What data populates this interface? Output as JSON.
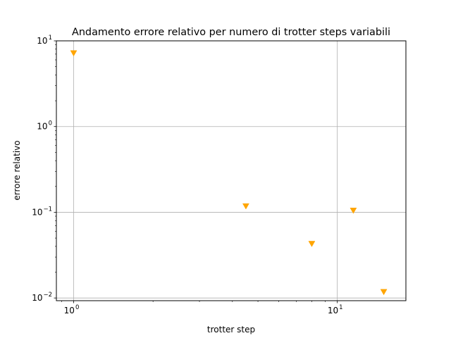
{
  "chart_data": {
    "type": "scatter",
    "title": "Andamento errore relativo per numero di trotter steps variabili",
    "xlabel": "trotter step",
    "ylabel": "errore relativo",
    "xscale": "log",
    "yscale": "log",
    "xlim": [
      0.86,
      18.2
    ],
    "ylim": [
      0.0093,
      10
    ],
    "grid": true,
    "marker": "triangle-down",
    "marker_color": "#ffa500",
    "x_ticks": [
      {
        "value": 1,
        "base": "10",
        "exp": "0"
      },
      {
        "value": 10,
        "base": "10",
        "exp": "1"
      }
    ],
    "y_ticks": [
      {
        "value": 10,
        "base": "10",
        "exp": "1"
      },
      {
        "value": 1,
        "base": "10",
        "exp": "0"
      },
      {
        "value": 0.1,
        "base": "10",
        "exp": "−1"
      },
      {
        "value": 0.01,
        "base": "10",
        "exp": "−2"
      }
    ],
    "series": [
      {
        "x": [
          1,
          4.5,
          8,
          11.5,
          15
        ],
        "y": [
          7.2,
          0.118,
          0.043,
          0.105,
          0.0118
        ]
      }
    ]
  }
}
